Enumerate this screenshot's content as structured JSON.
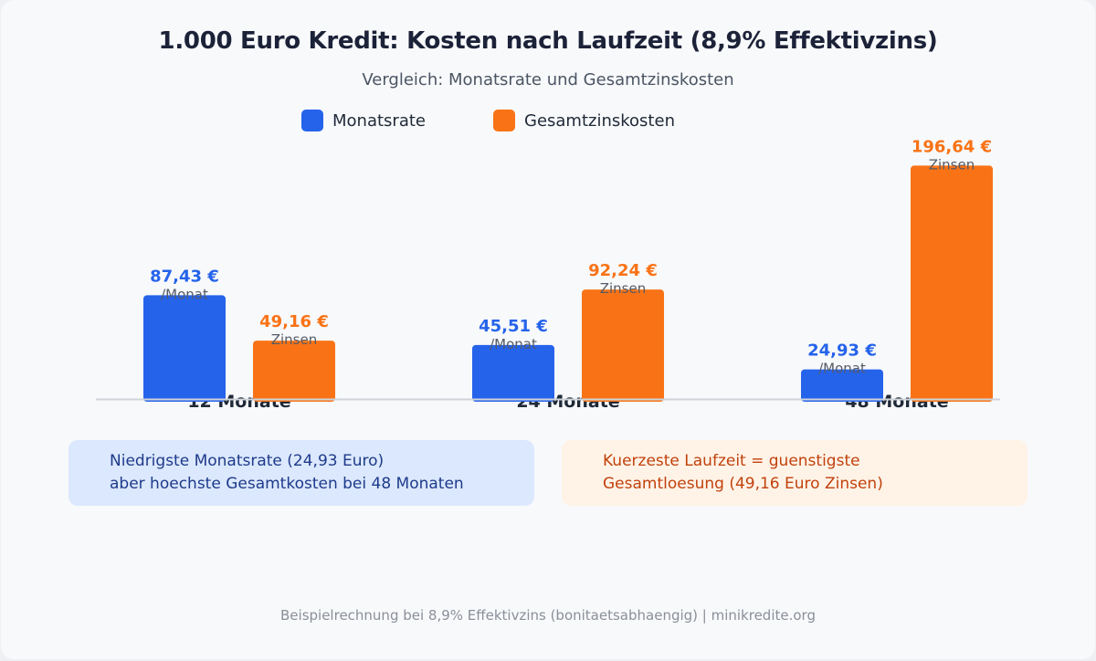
{
  "title": "1.000 Euro Kredit: Kosten nach Laufzeit (8,9% Effektivzins)",
  "subtitle": "Vergleich: Monatsrate und Gesamtzinskosten",
  "colors": {
    "monthly": "#2563eb",
    "interest": "#f97316",
    "note_blue_bg": "#dbe8fd",
    "note_blue_text": "#1e3a8a",
    "note_orange_bg": "#fff3e7",
    "note_orange_text": "#c2410c"
  },
  "chart_data": {
    "type": "bar",
    "title": "1.000 Euro Kredit: Kosten nach Laufzeit (8,9% Effektivzins)",
    "subtitle": "Vergleich: Monatsrate und Gesamtzinskosten",
    "categories": [
      "12 Monate",
      "24 Monate",
      "48 Monate"
    ],
    "series": [
      {
        "name": "Monatsrate",
        "values": [
          87.43,
          45.51,
          24.93
        ],
        "labels": [
          "87,43 €",
          "45,51 €",
          "24,93 €"
        ],
        "sublabel": "/Monat",
        "color": "#2563eb"
      },
      {
        "name": "Gesamtzinskosten",
        "values": [
          49.16,
          92.24,
          196.64
        ],
        "labels": [
          "49,16 €",
          "92,24 €",
          "196,64 €"
        ],
        "sublabel": "Zinsen",
        "color": "#f97316"
      }
    ],
    "ylim": [
      0,
      200
    ],
    "xlabel": "",
    "ylabel": "",
    "grid": false,
    "legend": "top-center"
  },
  "notes": {
    "blue": {
      "line1": "Niedrigste Monatsrate (24,93 Euro)",
      "line2": "aber hoechste Gesamtkosten bei 48 Monaten"
    },
    "orange": {
      "line1": "Kuerzeste Laufzeit = guenstigste",
      "line2": "Gesamtloesung (49,16 Euro Zinsen)"
    }
  },
  "footer": "Beispielrechnung bei 8,9% Effektivzins (bonitaetsabhaengig) | minikredite.org"
}
